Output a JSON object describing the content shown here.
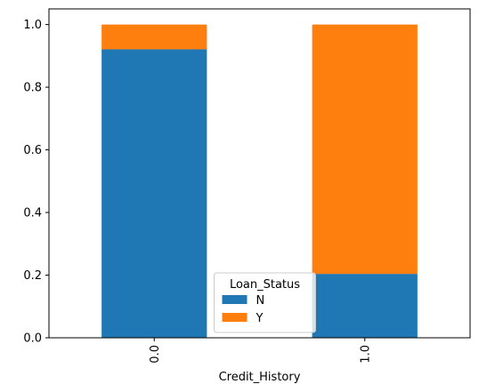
{
  "chart_data": {
    "type": "bar",
    "stacked": true,
    "title": "",
    "xlabel": "Credit_History",
    "ylabel": "",
    "categories": [
      "0.0",
      "1.0"
    ],
    "series": [
      {
        "name": "N",
        "values": [
          0.921,
          0.204
        ],
        "color": "#1f77b4"
      },
      {
        "name": "Y",
        "values": [
          0.079,
          0.796
        ],
        "color": "#ff7f0e"
      }
    ],
    "ylim": [
      0,
      1.05
    ],
    "yticks": [
      "0.0",
      "0.2",
      "0.4",
      "0.6",
      "0.8",
      "1.0"
    ],
    "grid": false,
    "legend": {
      "title": "Loan_Status",
      "placement": "lower-center"
    }
  }
}
